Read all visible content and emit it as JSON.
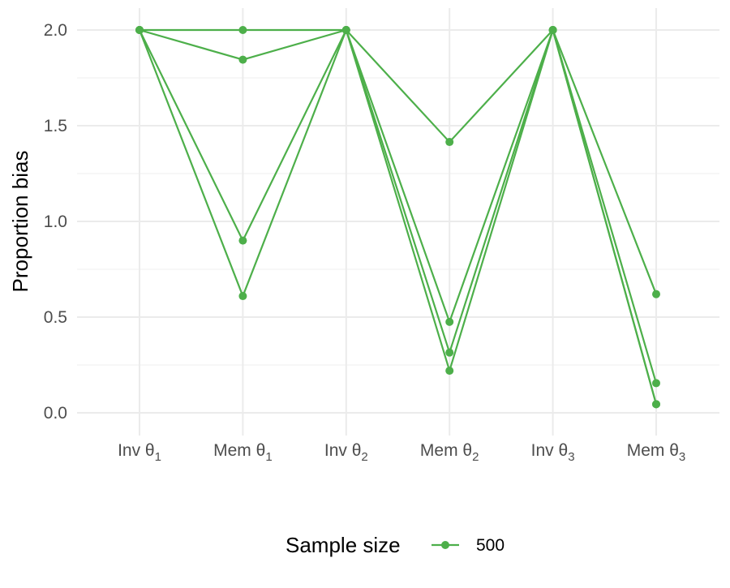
{
  "chart_data": {
    "type": "line",
    "title": "",
    "xlabel": "",
    "ylabel": "Proportion bias",
    "categories": [
      {
        "base": "Inv θ",
        "sub": "1"
      },
      {
        "base": "Mem θ",
        "sub": "1"
      },
      {
        "base": "Inv θ",
        "sub": "2"
      },
      {
        "base": "Mem θ",
        "sub": "2"
      },
      {
        "base": "Inv θ",
        "sub": "3"
      },
      {
        "base": "Mem θ",
        "sub": "3"
      }
    ],
    "ylim": [
      -0.1,
      2.1
    ],
    "yticks": [
      0.0,
      0.5,
      1.0,
      1.5,
      2.0
    ],
    "ytick_labels": [
      "0.0",
      "0.5",
      "1.0",
      "1.5",
      "2.0"
    ],
    "grid": true,
    "legend": {
      "title": "Sample size",
      "position": "bottom",
      "entries": [
        {
          "label": "500",
          "color": "#4daf4a"
        }
      ]
    },
    "series_color": "#4daf4a",
    "series": [
      {
        "values": [
          2.0,
          2.0,
          2.0,
          1.415,
          2.0,
          0.62
        ]
      },
      {
        "values": [
          2.0,
          1.845,
          2.0,
          0.475,
          2.0,
          0.155
        ]
      },
      {
        "values": [
          2.0,
          0.9,
          2.0,
          0.315,
          2.0,
          0.045
        ]
      },
      {
        "values": [
          2.0,
          0.61,
          2.0,
          0.22,
          2.0,
          0.045
        ]
      }
    ]
  }
}
